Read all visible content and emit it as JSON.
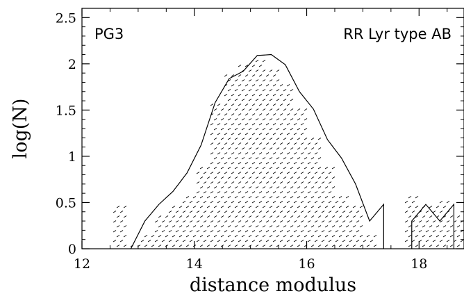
{
  "chart_data": {
    "type": "line",
    "xlabel": "distance modulus",
    "ylabel": "log(N)",
    "xlim": [
      12,
      18.8
    ],
    "ylim": [
      0,
      2.6
    ],
    "x_ticks": [
      12,
      14,
      16,
      18
    ],
    "y_ticks": [
      0,
      0.5,
      1,
      1.5,
      2,
      2.5
    ],
    "annotations": {
      "left": "PG3",
      "right": "RR Lyr type AB"
    },
    "series": [
      {
        "style": "solid-line",
        "segments": [
          [
            [
              12.87,
              0
            ],
            [
              13.12,
              0.3
            ],
            [
              13.37,
              0.48
            ],
            [
              13.62,
              0.62
            ],
            [
              13.87,
              0.82
            ],
            [
              14.12,
              1.12
            ],
            [
              14.37,
              1.58
            ],
            [
              14.62,
              1.84
            ],
            [
              14.87,
              1.92
            ],
            [
              15.12,
              2.09
            ],
            [
              15.37,
              2.1
            ],
            [
              15.62,
              1.99
            ],
            [
              15.87,
              1.7
            ],
            [
              16.12,
              1.51
            ],
            [
              16.37,
              1.18
            ],
            [
              16.62,
              0.98
            ],
            [
              16.87,
              0.7
            ],
            [
              17.12,
              0.3
            ],
            [
              17.37,
              0.48
            ],
            [
              17.37,
              0
            ]
          ],
          [
            [
              17.87,
              0
            ],
            [
              17.87,
              0.3
            ],
            [
              18.12,
              0.48
            ],
            [
              18.37,
              0.3
            ],
            [
              18.62,
              0.48
            ],
            [
              18.62,
              0
            ]
          ]
        ]
      },
      {
        "style": "hatched-area",
        "points": [
          [
            12.62,
            0.45
          ],
          [
            12.87,
            0.06
          ],
          [
            13.12,
            0.15
          ],
          [
            13.37,
            0.35
          ],
          [
            13.62,
            0.45
          ],
          [
            13.87,
            0.55
          ],
          [
            14.12,
            0.9
          ],
          [
            14.37,
            1.55
          ],
          [
            14.62,
            1.88
          ],
          [
            14.87,
            2.02
          ],
          [
            15.12,
            2.05
          ],
          [
            15.37,
            1.95
          ],
          [
            15.62,
            1.78
          ],
          [
            15.87,
            1.5
          ],
          [
            16.12,
            1.18
          ],
          [
            16.37,
            0.9
          ],
          [
            16.62,
            0.6
          ],
          [
            16.87,
            0.45
          ],
          [
            17.12,
            0.15
          ],
          [
            17.87,
            0.55
          ],
          [
            18.12,
            0.45
          ],
          [
            18.37,
            0.5
          ],
          [
            18.62,
            0.35
          ]
        ]
      }
    ]
  }
}
